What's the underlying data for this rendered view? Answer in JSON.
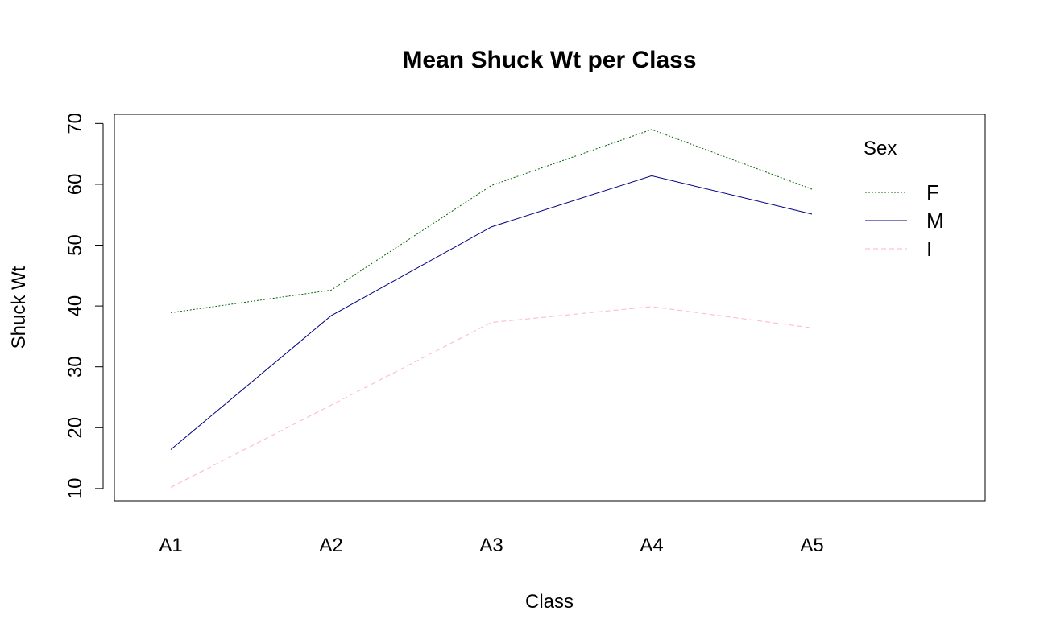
{
  "chart_data": {
    "type": "line",
    "title": "Mean Shuck Wt per Class",
    "xlabel": "Class",
    "ylabel": "Shuck Wt",
    "categories": [
      "A1",
      "A2",
      "A3",
      "A4",
      "A5"
    ],
    "ylim": [
      8,
      71.5
    ],
    "yticks": [
      10,
      20,
      30,
      40,
      50,
      60,
      70
    ],
    "grid": false,
    "legend": {
      "title": "Sex",
      "position": "top-right"
    },
    "series": [
      {
        "name": "F",
        "color": "#006400",
        "dash": "dotted",
        "values": [
          38.9,
          42.6,
          59.8,
          69.0,
          59.2
        ]
      },
      {
        "name": "M",
        "color": "#000080",
        "dash": "solid",
        "values": [
          16.4,
          38.4,
          53.0,
          61.4,
          55.1
        ]
      },
      {
        "name": "I",
        "color": "#ffb6c1",
        "dash": "dashed",
        "values": [
          10.2,
          23.7,
          37.3,
          39.9,
          36.4
        ]
      }
    ]
  }
}
